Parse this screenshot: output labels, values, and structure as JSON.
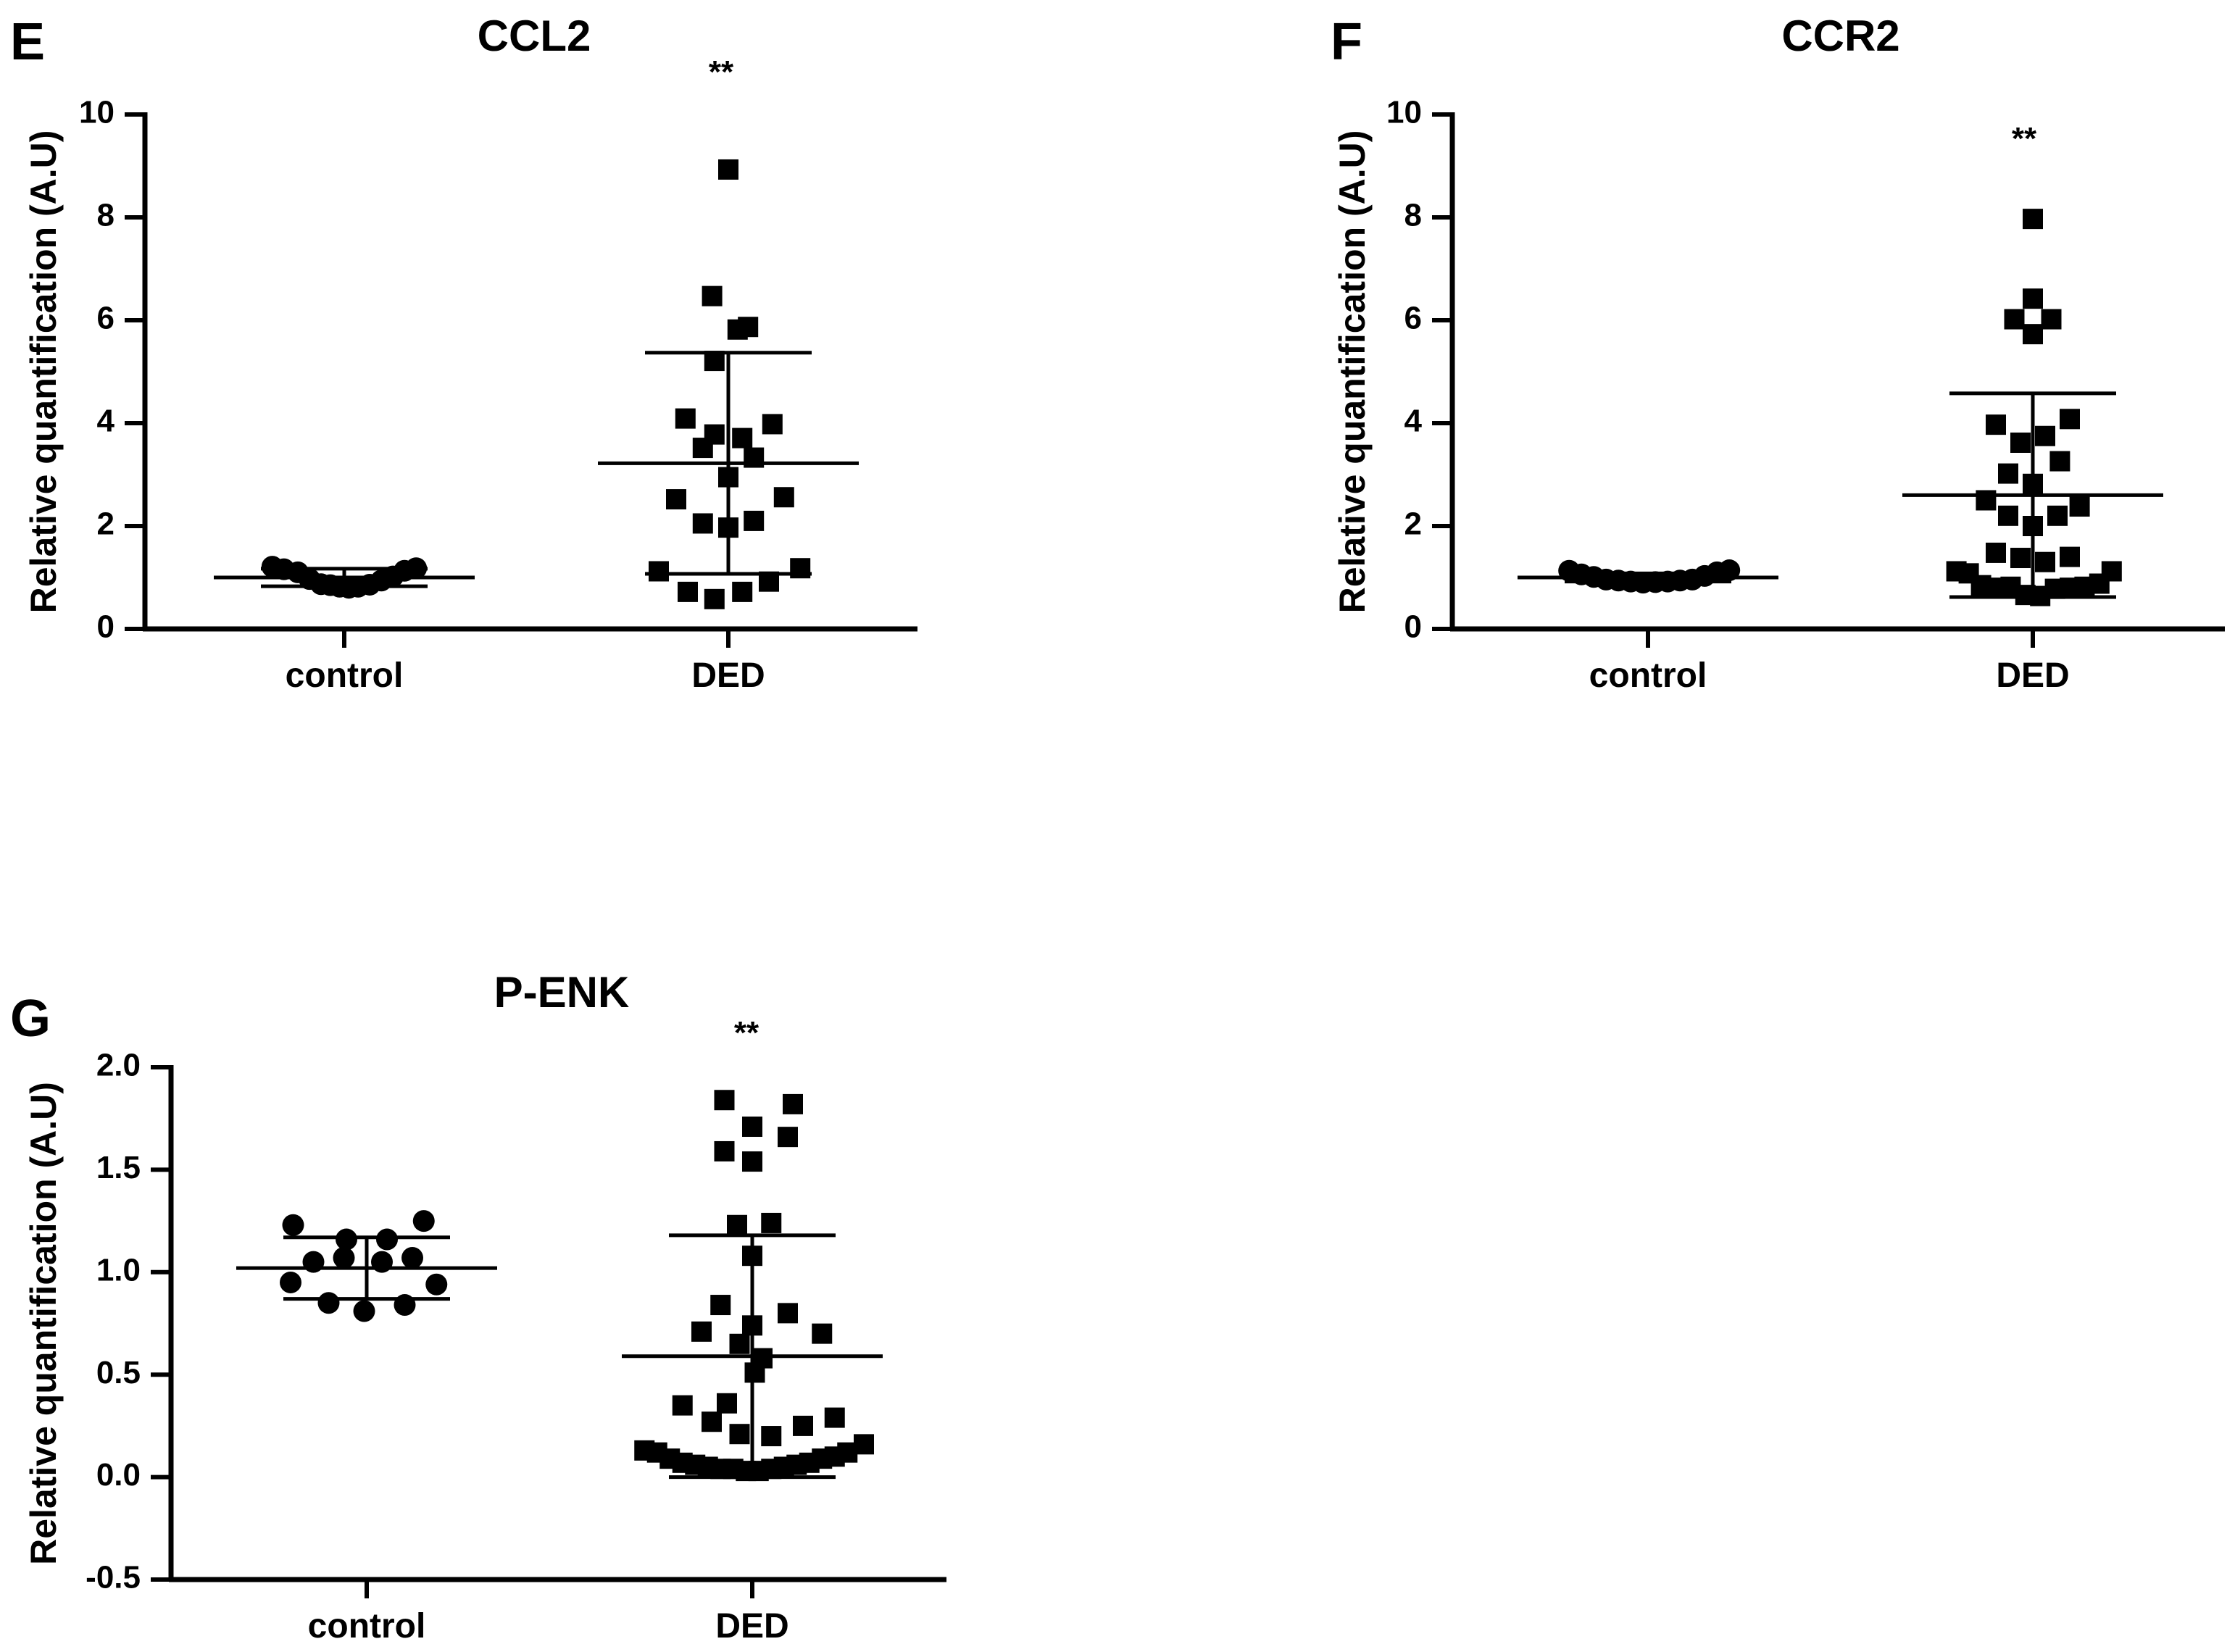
{
  "figure": {
    "colors": {
      "ink": "#000000",
      "background": "#ffffff"
    }
  },
  "chart_data": [
    {
      "panel": "E",
      "type": "scatter",
      "title": "CCL2",
      "ylabel": "Relative quantification (A.U)",
      "xlabel": "",
      "categories": [
        "control",
        "DED"
      ],
      "ylim": [
        0,
        10
      ],
      "yticks": [
        0,
        2,
        4,
        6,
        8,
        10
      ],
      "ytick_labels": [
        "0",
        "2",
        "4",
        "6",
        "8",
        "10"
      ],
      "significance": "**",
      "series": [
        {
          "name": "control",
          "marker": "circle",
          "mean": 1.0,
          "sd_lower": 0.83,
          "sd_upper": 1.17,
          "points": [
            {
              "dx": -0.62,
              "y": 1.21
            },
            {
              "dx": -0.52,
              "y": 1.16
            },
            {
              "dx": -0.4,
              "y": 1.1
            },
            {
              "dx": -0.3,
              "y": 0.97
            },
            {
              "dx": -0.2,
              "y": 0.87
            },
            {
              "dx": -0.12,
              "y": 0.85
            },
            {
              "dx": -0.04,
              "y": 0.82
            },
            {
              "dx": 0.04,
              "y": 0.8
            },
            {
              "dx": 0.12,
              "y": 0.82
            },
            {
              "dx": 0.22,
              "y": 0.86
            },
            {
              "dx": 0.32,
              "y": 0.94
            },
            {
              "dx": 0.42,
              "y": 1.02
            },
            {
              "dx": 0.52,
              "y": 1.13
            },
            {
              "dx": 0.62,
              "y": 1.18
            }
          ]
        },
        {
          "name": "DED",
          "marker": "square",
          "mean": 3.22,
          "sd_lower": 1.07,
          "sd_upper": 5.37,
          "points": [
            {
              "dx": 0.0,
              "y": 8.93
            },
            {
              "dx": -0.14,
              "y": 6.47
            },
            {
              "dx": 0.08,
              "y": 5.82
            },
            {
              "dx": 0.17,
              "y": 5.87
            },
            {
              "dx": -0.12,
              "y": 5.21
            },
            {
              "dx": -0.37,
              "y": 4.09
            },
            {
              "dx": -0.12,
              "y": 3.78
            },
            {
              "dx": 0.12,
              "y": 3.71
            },
            {
              "dx": 0.38,
              "y": 3.98
            },
            {
              "dx": -0.22,
              "y": 3.52
            },
            {
              "dx": 0.22,
              "y": 3.33
            },
            {
              "dx": 0.0,
              "y": 2.95
            },
            {
              "dx": -0.45,
              "y": 2.52
            },
            {
              "dx": 0.48,
              "y": 2.56
            },
            {
              "dx": -0.22,
              "y": 2.05
            },
            {
              "dx": 0.0,
              "y": 1.97
            },
            {
              "dx": 0.22,
              "y": 2.1
            },
            {
              "dx": -0.6,
              "y": 1.12
            },
            {
              "dx": 0.62,
              "y": 1.18
            },
            {
              "dx": 0.35,
              "y": 0.92
            },
            {
              "dx": -0.35,
              "y": 0.72
            },
            {
              "dx": -0.12,
              "y": 0.58
            },
            {
              "dx": 0.12,
              "y": 0.72
            }
          ]
        }
      ]
    },
    {
      "panel": "F",
      "type": "scatter",
      "title": "CCR2",
      "ylabel": "Relative quantification (A.U)",
      "xlabel": "",
      "categories": [
        "control",
        "DED"
      ],
      "ylim": [
        0,
        10
      ],
      "yticks": [
        0,
        2,
        4,
        6,
        8,
        10
      ],
      "ytick_labels": [
        "0",
        "2",
        "4",
        "6",
        "8",
        "10"
      ],
      "significance": "**",
      "series": [
        {
          "name": "control",
          "marker": "circle",
          "mean": 1.0,
          "sd_lower": 0.92,
          "sd_upper": 1.08,
          "points": [
            {
              "dx": -0.64,
              "y": 1.13
            },
            {
              "dx": -0.54,
              "y": 1.06
            },
            {
              "dx": -0.44,
              "y": 1.01
            },
            {
              "dx": -0.34,
              "y": 0.96
            },
            {
              "dx": -0.24,
              "y": 0.94
            },
            {
              "dx": -0.14,
              "y": 0.92
            },
            {
              "dx": -0.04,
              "y": 0.9
            },
            {
              "dx": 0.06,
              "y": 0.91
            },
            {
              "dx": 0.16,
              "y": 0.92
            },
            {
              "dx": 0.26,
              "y": 0.94
            },
            {
              "dx": 0.36,
              "y": 0.96
            },
            {
              "dx": 0.46,
              "y": 1.03
            },
            {
              "dx": 0.56,
              "y": 1.1
            },
            {
              "dx": 0.66,
              "y": 1.14
            }
          ]
        },
        {
          "name": "DED",
          "marker": "square",
          "mean": 2.6,
          "sd_lower": 0.62,
          "sd_upper": 4.58,
          "points": [
            {
              "dx": 0.0,
              "y": 7.97
            },
            {
              "dx": 0.0,
              "y": 6.42
            },
            {
              "dx": -0.15,
              "y": 6.02
            },
            {
              "dx": 0.15,
              "y": 6.02
            },
            {
              "dx": 0.0,
              "y": 5.73
            },
            {
              "dx": -0.3,
              "y": 3.97
            },
            {
              "dx": 0.3,
              "y": 4.08
            },
            {
              "dx": -0.1,
              "y": 3.62
            },
            {
              "dx": 0.1,
              "y": 3.75
            },
            {
              "dx": 0.22,
              "y": 3.26
            },
            {
              "dx": -0.2,
              "y": 3.02
            },
            {
              "dx": 0.0,
              "y": 2.82
            },
            {
              "dx": -0.38,
              "y": 2.5
            },
            {
              "dx": 0.38,
              "y": 2.38
            },
            {
              "dx": -0.2,
              "y": 2.2
            },
            {
              "dx": 0.2,
              "y": 2.2
            },
            {
              "dx": 0.0,
              "y": 2.0
            },
            {
              "dx": -0.3,
              "y": 1.48
            },
            {
              "dx": -0.1,
              "y": 1.38
            },
            {
              "dx": 0.1,
              "y": 1.3
            },
            {
              "dx": 0.3,
              "y": 1.4
            },
            {
              "dx": -0.62,
              "y": 1.12
            },
            {
              "dx": -0.52,
              "y": 1.08
            },
            {
              "dx": 0.64,
              "y": 1.12
            },
            {
              "dx": -0.42,
              "y": 0.85
            },
            {
              "dx": -0.3,
              "y": 0.8
            },
            {
              "dx": -0.18,
              "y": 0.82
            },
            {
              "dx": 0.18,
              "y": 0.78
            },
            {
              "dx": 0.3,
              "y": 0.8
            },
            {
              "dx": 0.42,
              "y": 0.82
            },
            {
              "dx": 0.54,
              "y": 0.88
            },
            {
              "dx": -0.06,
              "y": 0.66
            },
            {
              "dx": 0.06,
              "y": 0.64
            }
          ]
        }
      ]
    },
    {
      "panel": "G",
      "type": "scatter",
      "title": "P-ENK",
      "ylabel": "Relative quantification (A.U)",
      "xlabel": "",
      "categories": [
        "control",
        "DED"
      ],
      "ylim": [
        -0.5,
        2.0
      ],
      "yticks": [
        -0.5,
        0.0,
        0.5,
        1.0,
        1.5,
        2.0
      ],
      "ytick_labels": [
        "-0.5",
        "0.0",
        "0.5",
        "1.0",
        "1.5",
        "2.0"
      ],
      "significance": "**",
      "series": [
        {
          "name": "control",
          "marker": "circle",
          "mean": 1.02,
          "sd_lower": 0.87,
          "sd_upper": 1.17,
          "points": [
            {
              "dx": -0.58,
              "y": 1.23
            },
            {
              "dx": -0.16,
              "y": 1.16
            },
            {
              "dx": 0.16,
              "y": 1.16
            },
            {
              "dx": 0.45,
              "y": 1.25
            },
            {
              "dx": -0.42,
              "y": 1.05
            },
            {
              "dx": -0.18,
              "y": 1.07
            },
            {
              "dx": 0.12,
              "y": 1.05
            },
            {
              "dx": 0.36,
              "y": 1.07
            },
            {
              "dx": -0.6,
              "y": 0.95
            },
            {
              "dx": 0.55,
              "y": 0.94
            },
            {
              "dx": -0.3,
              "y": 0.85
            },
            {
              "dx": -0.02,
              "y": 0.81
            },
            {
              "dx": 0.3,
              "y": 0.84
            }
          ]
        },
        {
          "name": "DED",
          "marker": "square",
          "mean": 0.59,
          "sd_lower": 0.0,
          "sd_upper": 1.18,
          "points": [
            {
              "dx": -0.22,
              "y": 1.84
            },
            {
              "dx": 0.32,
              "y": 1.82
            },
            {
              "dx": 0.0,
              "y": 1.71
            },
            {
              "dx": 0.28,
              "y": 1.66
            },
            {
              "dx": -0.22,
              "y": 1.59
            },
            {
              "dx": 0.0,
              "y": 1.54
            },
            {
              "dx": -0.12,
              "y": 1.23
            },
            {
              "dx": 0.15,
              "y": 1.24
            },
            {
              "dx": 0.0,
              "y": 1.08
            },
            {
              "dx": -0.25,
              "y": 0.84
            },
            {
              "dx": 0.28,
              "y": 0.8
            },
            {
              "dx": -0.4,
              "y": 0.71
            },
            {
              "dx": 0.0,
              "y": 0.74
            },
            {
              "dx": 0.55,
              "y": 0.7
            },
            {
              "dx": -0.1,
              "y": 0.65
            },
            {
              "dx": 0.08,
              "y": 0.58
            },
            {
              "dx": 0.02,
              "y": 0.51
            },
            {
              "dx": -0.55,
              "y": 0.35
            },
            {
              "dx": -0.2,
              "y": 0.36
            },
            {
              "dx": -0.32,
              "y": 0.27
            },
            {
              "dx": -0.1,
              "y": 0.21
            },
            {
              "dx": 0.15,
              "y": 0.2
            },
            {
              "dx": 0.4,
              "y": 0.25
            },
            {
              "dx": 0.65,
              "y": 0.29
            },
            {
              "dx": -0.85,
              "y": 0.13
            },
            {
              "dx": -0.75,
              "y": 0.12
            },
            {
              "dx": -0.65,
              "y": 0.09
            },
            {
              "dx": -0.55,
              "y": 0.07
            },
            {
              "dx": -0.45,
              "y": 0.06
            },
            {
              "dx": -0.35,
              "y": 0.05
            },
            {
              "dx": -0.25,
              "y": 0.04
            },
            {
              "dx": -0.15,
              "y": 0.04
            },
            {
              "dx": -0.05,
              "y": 0.03
            },
            {
              "dx": 0.05,
              "y": 0.03
            },
            {
              "dx": 0.15,
              "y": 0.04
            },
            {
              "dx": 0.25,
              "y": 0.05
            },
            {
              "dx": 0.35,
              "y": 0.06
            },
            {
              "dx": 0.45,
              "y": 0.07
            },
            {
              "dx": 0.55,
              "y": 0.09
            },
            {
              "dx": 0.65,
              "y": 0.1
            },
            {
              "dx": 0.75,
              "y": 0.12
            },
            {
              "dx": 0.88,
              "y": 0.16
            }
          ]
        }
      ]
    }
  ]
}
